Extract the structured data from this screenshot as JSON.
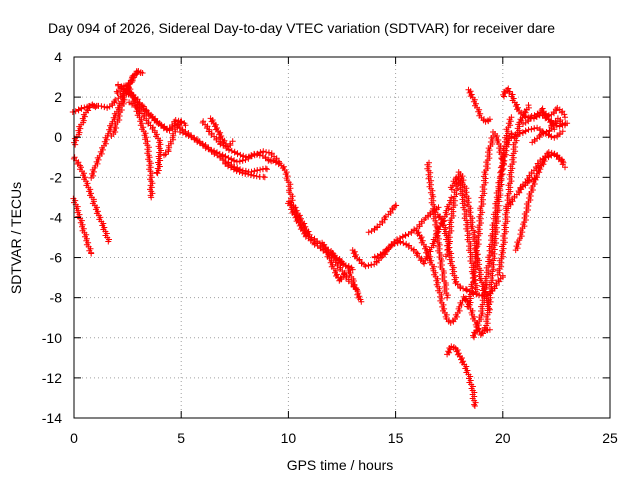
{
  "chart_data": {
    "type": "scatter",
    "title": "Day 094 of 2026, Sidereal Day-to-day VTEC variation (SDTVAR) for receiver dare",
    "xlabel": "GPS time / hours",
    "ylabel": "SDTVAR / TECUs",
    "xlim": [
      0,
      25
    ],
    "ylim": [
      -14,
      4
    ],
    "xticks": [
      0,
      5,
      10,
      15,
      20,
      25
    ],
    "yticks": [
      4,
      2,
      0,
      -2,
      -4,
      -6,
      -8,
      -10,
      -12,
      -14
    ],
    "grid": true,
    "marker": "+",
    "color": "#ff0000",
    "legend": "none",
    "tracks": [
      [
        [
          0.0,
          1.2
        ],
        [
          0.4,
          1.4
        ],
        [
          0.8,
          1.5
        ],
        [
          1.2,
          1.5
        ],
        [
          1.6,
          1.4
        ],
        [
          2.0,
          1.8
        ],
        [
          2.4,
          2.3
        ],
        [
          2.8,
          2.0
        ],
        [
          3.2,
          1.4
        ],
        [
          3.6,
          1.0
        ],
        [
          4.0,
          0.6
        ],
        [
          4.4,
          0.3
        ],
        [
          4.8,
          0.8
        ],
        [
          5.2,
          0.6
        ]
      ],
      [
        [
          0.0,
          -1.0
        ],
        [
          0.3,
          -1.5
        ],
        [
          0.6,
          -2.3
        ],
        [
          0.9,
          -3.2
        ],
        [
          1.2,
          -4.0
        ],
        [
          1.5,
          -4.8
        ],
        [
          1.6,
          -5.2
        ]
      ],
      [
        [
          0.0,
          -3.0
        ],
        [
          0.2,
          -3.7
        ],
        [
          0.4,
          -4.4
        ],
        [
          0.6,
          -5.1
        ],
        [
          0.8,
          -5.8
        ]
      ],
      [
        [
          0.0,
          -0.4
        ],
        [
          0.2,
          0.2
        ],
        [
          0.4,
          0.8
        ],
        [
          0.6,
          1.3
        ],
        [
          0.8,
          1.6
        ],
        [
          1.0,
          1.5
        ]
      ],
      [
        [
          0.8,
          -2.0
        ],
        [
          1.0,
          -1.4
        ],
        [
          1.2,
          -0.9
        ],
        [
          1.4,
          -0.4
        ],
        [
          1.6,
          0.2
        ],
        [
          1.8,
          0.8
        ],
        [
          2.0,
          1.3
        ],
        [
          2.2,
          1.8
        ],
        [
          2.4,
          2.3
        ],
        [
          2.6,
          2.7
        ],
        [
          2.8,
          3.1
        ],
        [
          3.0,
          3.3
        ],
        [
          3.2,
          3.2
        ]
      ],
      [
        [
          1.8,
          0.0
        ],
        [
          2.0,
          0.6
        ],
        [
          2.2,
          1.4
        ],
        [
          2.4,
          2.0
        ],
        [
          2.6,
          2.6
        ],
        [
          2.8,
          3.0
        ],
        [
          3.0,
          3.3
        ]
      ],
      [
        [
          2.0,
          2.2
        ],
        [
          2.2,
          2.5
        ],
        [
          2.4,
          2.6
        ],
        [
          2.6,
          2.4
        ],
        [
          2.8,
          1.9
        ],
        [
          3.0,
          1.2
        ],
        [
          3.2,
          0.5
        ],
        [
          3.4,
          -0.2
        ],
        [
          3.5,
          -1.0
        ],
        [
          3.6,
          -2.0
        ],
        [
          3.6,
          -3.0
        ]
      ],
      [
        [
          2.6,
          1.8
        ],
        [
          3.0,
          1.5
        ],
        [
          3.4,
          0.9
        ],
        [
          3.8,
          0.3
        ],
        [
          4.0,
          -0.2
        ],
        [
          4.0,
          -1.0
        ],
        [
          3.9,
          -1.8
        ]
      ],
      [
        [
          2.0,
          2.6
        ],
        [
          2.4,
          2.3
        ],
        [
          2.8,
          1.9
        ],
        [
          3.2,
          1.5
        ],
        [
          3.6,
          1.0
        ],
        [
          4.0,
          0.6
        ],
        [
          4.4,
          0.3
        ],
        [
          4.8,
          0.6
        ],
        [
          5.0,
          0.8
        ]
      ],
      [
        [
          4.8,
          0.6
        ],
        [
          5.2,
          0.3
        ],
        [
          5.6,
          0.0
        ],
        [
          6.0,
          -0.3
        ],
        [
          6.4,
          -0.6
        ],
        [
          6.8,
          -0.8
        ],
        [
          7.2,
          -1.0
        ],
        [
          7.6,
          -1.2
        ],
        [
          8.0,
          -1.1
        ],
        [
          8.4,
          -0.8
        ],
        [
          8.8,
          -0.9
        ],
        [
          9.2,
          -1.2
        ]
      ],
      [
        [
          5.0,
          0.2
        ],
        [
          5.4,
          0.0
        ],
        [
          5.8,
          -0.3
        ],
        [
          6.2,
          -0.6
        ],
        [
          6.6,
          -0.9
        ],
        [
          7.0,
          -1.2
        ],
        [
          7.4,
          -1.5
        ],
        [
          7.8,
          -1.7
        ],
        [
          8.2,
          -1.8
        ],
        [
          8.6,
          -1.7
        ],
        [
          9.0,
          -1.6
        ]
      ],
      [
        [
          6.0,
          0.8
        ],
        [
          6.4,
          0.2
        ],
        [
          6.8,
          -0.3
        ],
        [
          7.2,
          -0.6
        ],
        [
          7.6,
          -0.8
        ],
        [
          8.0,
          -1.0
        ],
        [
          8.4,
          -0.9
        ],
        [
          8.8,
          -0.7
        ],
        [
          9.2,
          -0.8
        ],
        [
          9.6,
          -1.3
        ]
      ],
      [
        [
          6.4,
          1.0
        ],
        [
          6.6,
          0.6
        ],
        [
          6.8,
          0.2
        ],
        [
          7.0,
          -0.2
        ],
        [
          7.2,
          -0.4
        ],
        [
          7.4,
          -0.2
        ]
      ],
      [
        [
          7.0,
          -1.3
        ],
        [
          7.4,
          -1.6
        ],
        [
          7.8,
          -1.8
        ],
        [
          8.2,
          -1.9
        ],
        [
          8.6,
          -2.0
        ],
        [
          8.9,
          -2.0
        ]
      ],
      [
        [
          5.0,
          0.8
        ],
        [
          4.8,
          0.6
        ],
        [
          4.6,
          0.0
        ],
        [
          4.4,
          -0.6
        ],
        [
          4.2,
          -0.9
        ]
      ],
      [
        [
          9.2,
          -1.2
        ],
        [
          9.6,
          -1.4
        ],
        [
          9.8,
          -1.6
        ],
        [
          10.0,
          -2.2
        ],
        [
          10.1,
          -2.8
        ],
        [
          10.2,
          -3.4
        ],
        [
          10.4,
          -3.8
        ],
        [
          10.6,
          -4.2
        ],
        [
          10.8,
          -4.6
        ],
        [
          11.0,
          -5.0
        ],
        [
          11.4,
          -5.3
        ],
        [
          11.8,
          -5.6
        ],
        [
          12.2,
          -6.0
        ],
        [
          12.6,
          -6.4
        ],
        [
          13.0,
          -6.6
        ]
      ],
      [
        [
          10.0,
          -3.2
        ],
        [
          10.2,
          -3.7
        ],
        [
          10.4,
          -4.1
        ],
        [
          10.6,
          -4.5
        ],
        [
          10.8,
          -4.9
        ],
        [
          11.2,
          -5.3
        ],
        [
          11.6,
          -5.6
        ],
        [
          12.0,
          -5.9
        ],
        [
          12.4,
          -6.5
        ],
        [
          12.8,
          -7.1
        ],
        [
          13.2,
          -7.6
        ]
      ],
      [
        [
          11.6,
          -5.2
        ],
        [
          11.8,
          -5.7
        ],
        [
          12.0,
          -6.2
        ],
        [
          12.2,
          -6.7
        ],
        [
          12.4,
          -7.1
        ],
        [
          12.6,
          -6.8
        ]
      ],
      [
        [
          12.0,
          -5.8
        ],
        [
          12.4,
          -6.2
        ],
        [
          12.8,
          -6.6
        ],
        [
          13.0,
          -7.2
        ],
        [
          13.2,
          -7.8
        ],
        [
          13.4,
          -8.2
        ]
      ],
      [
        [
          13.0,
          -5.6
        ],
        [
          13.2,
          -6.0
        ],
        [
          13.6,
          -6.4
        ],
        [
          14.0,
          -6.3
        ],
        [
          14.4,
          -5.9
        ],
        [
          14.8,
          -5.3
        ],
        [
          15.2,
          -5.0
        ],
        [
          15.6,
          -4.8
        ],
        [
          16.0,
          -4.5
        ],
        [
          16.4,
          -4.0
        ],
        [
          16.8,
          -3.6
        ],
        [
          17.0,
          -3.5
        ]
      ],
      [
        [
          13.8,
          -4.8
        ],
        [
          14.2,
          -4.5
        ],
        [
          14.6,
          -4.0
        ],
        [
          14.9,
          -3.6
        ],
        [
          15.0,
          -3.4
        ]
      ],
      [
        [
          14.0,
          -6.0
        ],
        [
          14.4,
          -5.8
        ],
        [
          14.8,
          -5.4
        ],
        [
          15.2,
          -5.2
        ],
        [
          15.6,
          -5.4
        ],
        [
          16.0,
          -5.8
        ],
        [
          16.3,
          -6.3
        ],
        [
          16.6,
          -5.7
        ],
        [
          16.8,
          -5.2
        ],
        [
          17.0,
          -4.6
        ],
        [
          17.2,
          -4.2
        ],
        [
          17.4,
          -5.0
        ],
        [
          17.6,
          -6.2
        ],
        [
          17.8,
          -7.2
        ],
        [
          18.0,
          -7.5
        ],
        [
          18.3,
          -7.6
        ],
        [
          18.6,
          -7.8
        ],
        [
          19.0,
          -7.9
        ],
        [
          19.4,
          -7.8
        ],
        [
          19.8,
          -7.2
        ],
        [
          20.0,
          -6.9
        ]
      ],
      [
        [
          16.0,
          -4.6
        ],
        [
          16.2,
          -5.0
        ],
        [
          16.4,
          -5.5
        ],
        [
          16.6,
          -6.0
        ],
        [
          16.8,
          -6.6
        ],
        [
          17.0,
          -7.4
        ],
        [
          17.2,
          -8.4
        ],
        [
          17.4,
          -9.0
        ],
        [
          17.6,
          -9.2
        ],
        [
          17.8,
          -9.0
        ],
        [
          18.0,
          -8.4
        ],
        [
          18.2,
          -7.9
        ],
        [
          18.4,
          -8.2
        ],
        [
          18.6,
          -8.8
        ],
        [
          18.8,
          -9.4
        ],
        [
          19.0,
          -9.8
        ],
        [
          19.2,
          -9.5
        ],
        [
          19.4,
          -9.6
        ]
      ],
      [
        [
          16.5,
          -1.3
        ],
        [
          16.6,
          -2.2
        ],
        [
          16.7,
          -3.0
        ],
        [
          16.8,
          -3.8
        ],
        [
          16.9,
          -4.6
        ],
        [
          17.0,
          -5.4
        ],
        [
          17.1,
          -6.2
        ],
        [
          17.2,
          -6.8
        ],
        [
          17.3,
          -7.4
        ],
        [
          17.4,
          -8.0
        ]
      ],
      [
        [
          17.4,
          -10.8
        ],
        [
          17.6,
          -10.4
        ],
        [
          17.8,
          -10.5
        ],
        [
          18.0,
          -10.9
        ],
        [
          18.2,
          -11.3
        ],
        [
          18.4,
          -11.8
        ],
        [
          18.6,
          -12.6
        ],
        [
          18.7,
          -13.4
        ]
      ],
      [
        [
          17.4,
          -6.0
        ],
        [
          17.6,
          -4.2
        ],
        [
          17.8,
          -2.8
        ],
        [
          18.0,
          -1.8
        ],
        [
          18.2,
          -2.4
        ],
        [
          18.4,
          -3.4
        ],
        [
          18.6,
          -4.6
        ],
        [
          18.8,
          -6.0
        ],
        [
          19.0,
          -7.2
        ],
        [
          19.2,
          -8.0
        ],
        [
          19.4,
          -8.6
        ]
      ],
      [
        [
          17.6,
          -2.6
        ],
        [
          17.8,
          -2.0
        ],
        [
          18.0,
          -2.2
        ],
        [
          18.2,
          -3.4
        ],
        [
          18.4,
          -5.0
        ],
        [
          18.6,
          -6.6
        ],
        [
          18.8,
          -7.8
        ]
      ],
      [
        [
          17.0,
          -3.8
        ],
        [
          17.2,
          -4.2
        ],
        [
          17.4,
          -3.6
        ],
        [
          17.6,
          -3.0
        ]
      ],
      [
        [
          18.6,
          -10.0
        ],
        [
          18.8,
          -9.6
        ],
        [
          19.0,
          -8.8
        ],
        [
          19.2,
          -7.4
        ],
        [
          19.4,
          -5.8
        ],
        [
          19.6,
          -4.2
        ],
        [
          19.8,
          -2.6
        ],
        [
          20.0,
          -1.4
        ],
        [
          20.2,
          -0.4
        ],
        [
          20.4,
          0.2
        ]
      ],
      [
        [
          18.4,
          2.4
        ],
        [
          18.6,
          2.0
        ],
        [
          18.8,
          1.5
        ],
        [
          19.0,
          1.0
        ],
        [
          19.2,
          0.8
        ],
        [
          19.4,
          0.9
        ]
      ],
      [
        [
          18.4,
          -8.5
        ],
        [
          18.6,
          -7.4
        ],
        [
          18.8,
          -5.6
        ],
        [
          19.0,
          -3.6
        ],
        [
          19.2,
          -1.8
        ],
        [
          19.4,
          -0.6
        ],
        [
          19.6,
          0.2
        ],
        [
          19.8,
          -0.3
        ],
        [
          20.0,
          -1.3
        ]
      ],
      [
        [
          19.2,
          -9.6
        ],
        [
          19.4,
          -8.0
        ],
        [
          19.6,
          -5.6
        ],
        [
          19.8,
          -3.2
        ],
        [
          20.0,
          -1.2
        ],
        [
          20.2,
          0.3
        ],
        [
          20.4,
          1.0
        ]
      ],
      [
        [
          19.8,
          -6.8
        ],
        [
          20.0,
          -5.6
        ],
        [
          20.2,
          -3.6
        ],
        [
          20.4,
          -1.6
        ],
        [
          20.6,
          0.0
        ],
        [
          20.8,
          0.8
        ],
        [
          21.0,
          1.2
        ],
        [
          21.2,
          1.6
        ]
      ],
      [
        [
          20.0,
          2.0
        ],
        [
          20.2,
          2.4
        ],
        [
          20.4,
          2.1
        ],
        [
          20.6,
          1.6
        ],
        [
          20.8,
          1.2
        ],
        [
          21.0,
          1.0
        ],
        [
          21.4,
          0.9
        ],
        [
          21.8,
          1.1
        ],
        [
          22.2,
          0.8
        ],
        [
          22.6,
          0.5
        ],
        [
          23.0,
          0.7
        ]
      ],
      [
        [
          20.4,
          0.0
        ],
        [
          20.8,
          0.2
        ],
        [
          21.2,
          0.4
        ],
        [
          21.6,
          0.5
        ],
        [
          22.0,
          0.2
        ],
        [
          22.4,
          0.0
        ],
        [
          22.8,
          0.3
        ]
      ],
      [
        [
          20.2,
          -3.6
        ],
        [
          20.6,
          -3.0
        ],
        [
          21.0,
          -2.4
        ],
        [
          21.4,
          -1.8
        ],
        [
          21.8,
          -1.2
        ],
        [
          22.2,
          -0.8
        ],
        [
          22.6,
          -1.0
        ],
        [
          22.9,
          -1.5
        ]
      ],
      [
        [
          20.8,
          -2.6
        ],
        [
          21.2,
          -2.2
        ],
        [
          21.6,
          -2.0
        ]
      ],
      [
        [
          21.4,
          -0.2
        ],
        [
          21.8,
          0.2
        ],
        [
          22.2,
          0.4
        ],
        [
          22.6,
          1.0
        ],
        [
          22.9,
          0.6
        ]
      ],
      [
        [
          21.8,
          1.4
        ],
        [
          22.0,
          1.0
        ],
        [
          22.2,
          0.8
        ],
        [
          22.4,
          0.4
        ]
      ],
      [
        [
          20.6,
          -5.6
        ],
        [
          20.8,
          -5.0
        ],
        [
          21.0,
          -4.2
        ],
        [
          21.2,
          -3.2
        ],
        [
          21.4,
          -2.4
        ],
        [
          21.6,
          -1.8
        ],
        [
          21.8,
          -1.4
        ],
        [
          22.0,
          -1.0
        ],
        [
          22.4,
          -0.8
        ],
        [
          22.8,
          -1.2
        ]
      ],
      [
        [
          21.0,
          0.6
        ],
        [
          21.4,
          1.0
        ],
        [
          21.8,
          1.2
        ],
        [
          22.2,
          1.0
        ],
        [
          22.6,
          1.4
        ],
        [
          22.9,
          1.0
        ]
      ]
    ]
  }
}
